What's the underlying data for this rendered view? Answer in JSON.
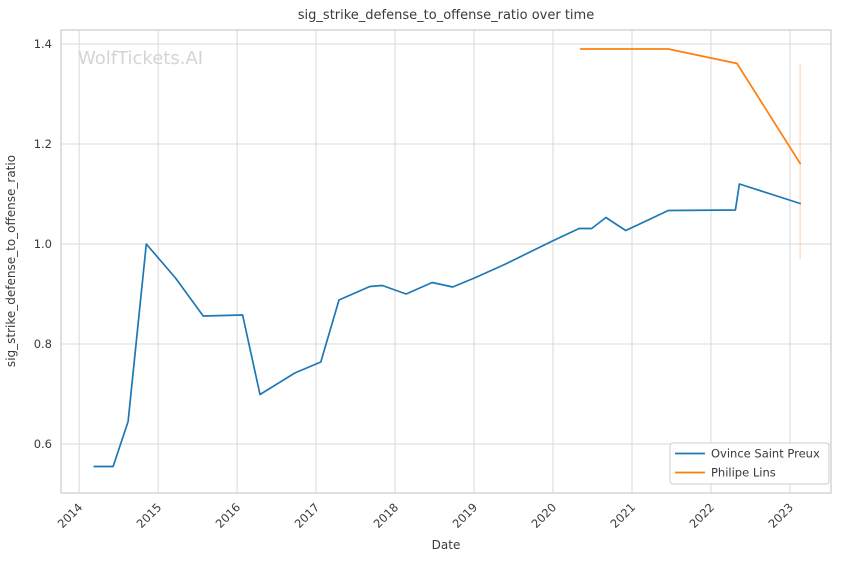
{
  "watermark": "WolfTickets.AI",
  "chart_data": {
    "type": "line",
    "title": "sig_strike_defense_to_offense_ratio over time",
    "xlabel": "Date",
    "ylabel": "sig_strike_defense_to_offense_ratio",
    "xlim": [
      2013.77,
      2023.52
    ],
    "ylim": [
      0.502,
      1.428
    ],
    "x_ticks": [
      2014,
      2015,
      2016,
      2017,
      2018,
      2019,
      2020,
      2021,
      2022,
      2023
    ],
    "y_ticks": [
      0.6,
      0.8,
      1.0,
      1.2,
      1.4
    ],
    "grid": true,
    "legend_position": "lower right",
    "styles": {
      "grid_color": "#d9d9d9",
      "spine_color": "#cccccc",
      "text_color": "#3a3a3a",
      "watermark_color": "#d4d4d4",
      "legend_border_color": "#cccccc"
    },
    "series": [
      {
        "name": "Ovince Saint Preux",
        "color": "#1f77b4",
        "points": [
          [
            2014.19,
            0.555
          ],
          [
            2014.43,
            0.555
          ],
          [
            2014.62,
            0.645
          ],
          [
            2014.85,
            1.0
          ],
          [
            2015.22,
            0.932
          ],
          [
            2015.57,
            0.856
          ],
          [
            2016.07,
            0.858
          ],
          [
            2016.29,
            0.699
          ],
          [
            2016.73,
            0.742
          ],
          [
            2017.06,
            0.764
          ],
          [
            2017.29,
            0.888
          ],
          [
            2017.68,
            0.915
          ],
          [
            2017.84,
            0.917
          ],
          [
            2018.14,
            0.9
          ],
          [
            2018.47,
            0.923
          ],
          [
            2018.73,
            0.914
          ],
          [
            2019.02,
            0.933
          ],
          [
            2019.4,
            0.96
          ],
          [
            2019.98,
            1.005
          ],
          [
            2020.33,
            1.031
          ],
          [
            2020.49,
            1.031
          ],
          [
            2020.67,
            1.053
          ],
          [
            2020.92,
            1.027
          ],
          [
            2021.46,
            1.067
          ],
          [
            2022.31,
            1.068
          ],
          [
            2022.36,
            1.12
          ],
          [
            2023.13,
            1.081
          ]
        ]
      },
      {
        "name": "Philipe Lins",
        "color": "#ff7f0e",
        "points": [
          [
            2020.35,
            1.39
          ],
          [
            2021.46,
            1.39
          ],
          [
            2022.33,
            1.361
          ],
          [
            2023.13,
            1.161
          ]
        ],
        "error_bar": {
          "x": 2023.13,
          "y_min": 0.97,
          "y_max": 1.36
        }
      }
    ]
  }
}
